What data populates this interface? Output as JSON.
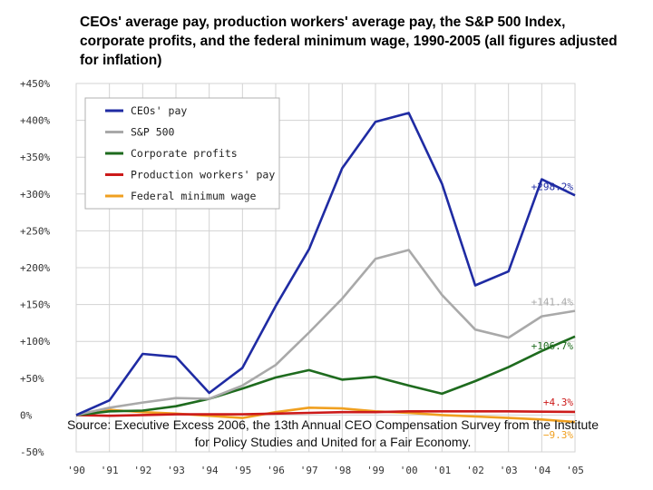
{
  "chart_data": {
    "type": "line",
    "title": "CEOs' average pay, production workers' average pay, the S&P 500 Index, corporate profits, and the federal minimum wage, 1990-2005 (all figures adjusted for inflation)",
    "xlabel": "",
    "ylabel": "",
    "categories": [
      "'90",
      "'91",
      "'92",
      "'93",
      "'94",
      "'95",
      "'96",
      "'97",
      "'98",
      "'99",
      "'00",
      "'01",
      "'02",
      "'03",
      "'04",
      "'05"
    ],
    "y_ticks": [
      "+450%",
      "+400%",
      "+350%",
      "+300%",
      "+250%",
      "+200%",
      "+150%",
      "+100%",
      "+50%",
      "0%",
      "-50%"
    ],
    "ylim": [
      -50,
      450
    ],
    "grid": true,
    "legend_position": "top-left",
    "series": [
      {
        "name": "CEOs' pay",
        "color": "#1f2ba3",
        "values": [
          0,
          20,
          83,
          79,
          30,
          64,
          148,
          225,
          335,
          398,
          410,
          314,
          176,
          195,
          320,
          298.2
        ],
        "end_label": "+298.2%"
      },
      {
        "name": "S&P 500",
        "color": "#a9a9a9",
        "values": [
          0,
          10,
          17,
          23,
          22,
          40,
          68,
          112,
          158,
          212,
          224,
          163,
          116,
          105,
          134,
          141.4
        ],
        "end_label": "+141.4%"
      },
      {
        "name": "Corporate profits",
        "color": "#1e6b1e",
        "values": [
          0,
          5,
          6,
          12,
          22,
          36,
          51,
          61,
          48,
          52,
          40,
          29,
          46,
          65,
          87,
          106.7
        ],
        "end_label": "+106.7%"
      },
      {
        "name": "Production workers' pay",
        "color": "#cc1a1a",
        "values": [
          0,
          -1,
          0,
          1,
          1,
          1,
          2,
          3,
          4,
          4,
          5,
          5,
          5,
          5,
          4.5,
          4.3
        ],
        "end_label": "+4.3%"
      },
      {
        "name": "Federal minimum wage",
        "color": "#f0a020",
        "values": [
          0,
          7,
          4,
          2,
          -1,
          -4,
          4,
          10,
          9,
          5,
          3,
          0,
          -2,
          -4,
          -6,
          -9.3
        ],
        "end_label": "−9.3%"
      }
    ]
  },
  "source_text": "Source: Executive Excess 2006, the 13th Annual CEO Compensation Survey from the Institute for Policy Studies and United for a Fair Economy.",
  "colors": {
    "grid": "#d3d3d3",
    "legend_border": "#b0b0b0",
    "axis_text": "#333333"
  }
}
